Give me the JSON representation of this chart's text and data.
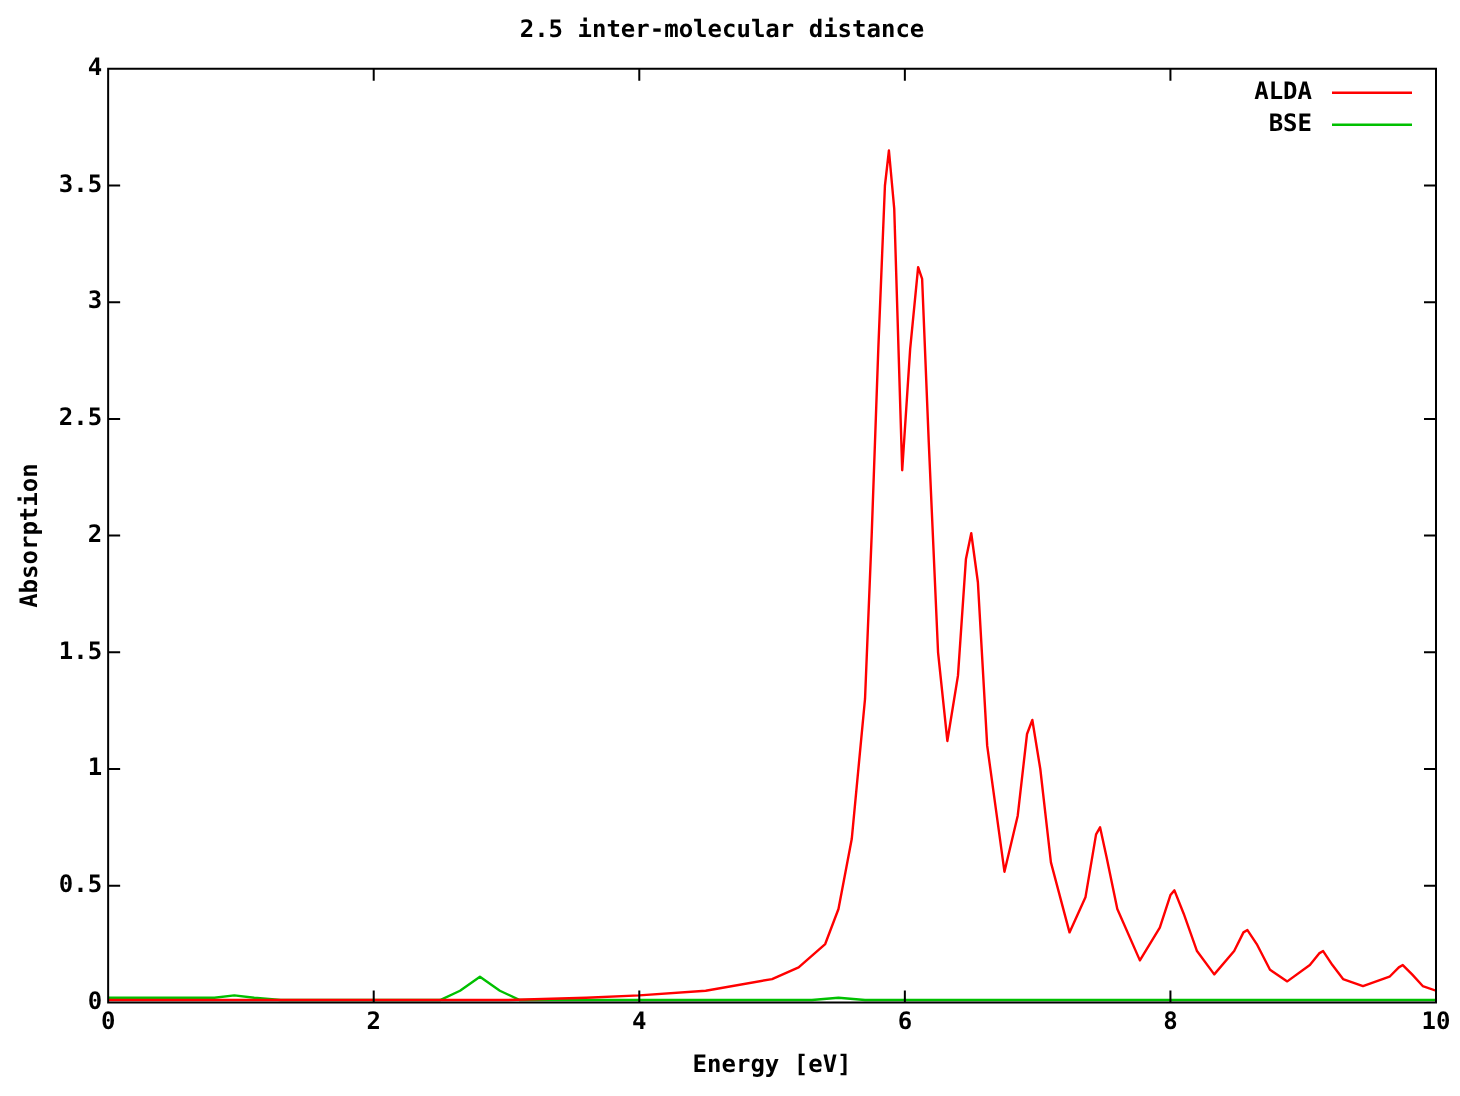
{
  "chart_data": {
    "type": "line",
    "title": "2.5 inter-molecular distance",
    "xlabel": "Energy [eV]",
    "ylabel": "Absorption",
    "xlim": [
      0,
      10
    ],
    "xticks": [
      0,
      2,
      4,
      6,
      8,
      10
    ],
    "ylim": [
      0,
      4
    ],
    "yticks": [
      0,
      0.5,
      1,
      1.5,
      2,
      2.5,
      3,
      3.5,
      4
    ],
    "grid": false,
    "legend": "top right",
    "marker": "none",
    "line_style": "solid",
    "series": [
      {
        "name": "ALDA",
        "color": "#ff0000",
        "x": [
          0,
          1,
          2,
          3,
          3.6,
          4,
          4.5,
          5,
          5.2,
          5.4,
          5.5,
          5.6,
          5.7,
          5.75,
          5.8,
          5.85,
          5.88,
          5.92,
          5.98,
          6.04,
          6.1,
          6.13,
          6.18,
          6.25,
          6.32,
          6.4,
          6.46,
          6.5,
          6.55,
          6.62,
          6.75,
          6.85,
          6.92,
          6.96,
          7.02,
          7.1,
          7.24,
          7.36,
          7.44,
          7.47,
          7.52,
          7.6,
          7.77,
          7.92,
          8.0,
          8.03,
          8.1,
          8.2,
          8.33,
          8.48,
          8.55,
          8.58,
          8.65,
          8.75,
          8.88,
          9.05,
          9.12,
          9.15,
          9.22,
          9.3,
          9.45,
          9.65,
          9.72,
          9.75,
          9.82,
          9.9,
          10
        ],
        "values": [
          0.01,
          0.01,
          0.01,
          0.01,
          0.02,
          0.03,
          0.05,
          0.1,
          0.15,
          0.25,
          0.4,
          0.7,
          1.3,
          2.0,
          2.8,
          3.5,
          3.65,
          3.4,
          2.28,
          2.8,
          3.15,
          3.1,
          2.4,
          1.5,
          1.12,
          1.4,
          1.9,
          2.01,
          1.8,
          1.1,
          0.56,
          0.8,
          1.15,
          1.21,
          1.0,
          0.6,
          0.3,
          0.45,
          0.72,
          0.75,
          0.62,
          0.4,
          0.18,
          0.32,
          0.46,
          0.48,
          0.38,
          0.22,
          0.12,
          0.22,
          0.3,
          0.31,
          0.25,
          0.14,
          0.09,
          0.16,
          0.21,
          0.22,
          0.16,
          0.1,
          0.07,
          0.11,
          0.15,
          0.16,
          0.12,
          0.07,
          0.05
        ]
      },
      {
        "name": "BSE",
        "color": "#00c000",
        "x": [
          0,
          0.5,
          0.8,
          0.95,
          1.1,
          1.3,
          2.0,
          2.5,
          2.65,
          2.8,
          2.95,
          3.1,
          3.5,
          4.5,
          5.3,
          5.5,
          5.7,
          6.5,
          6.7,
          6.9,
          8,
          10
        ],
        "values": [
          0.02,
          0.02,
          0.02,
          0.03,
          0.02,
          0.01,
          0.01,
          0.01,
          0.05,
          0.11,
          0.05,
          0.01,
          0.01,
          0.01,
          0.01,
          0.02,
          0.01,
          0.01,
          0.01,
          0.01,
          0.01,
          0.01
        ]
      }
    ]
  }
}
